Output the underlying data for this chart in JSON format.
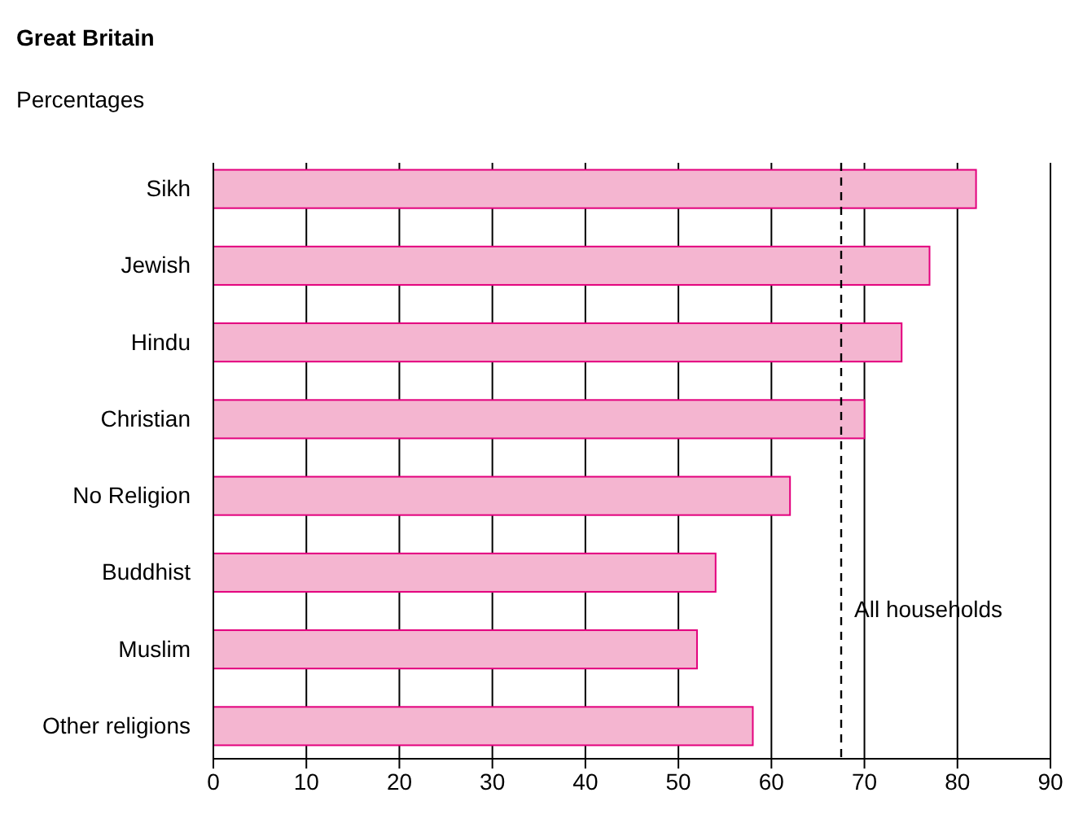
{
  "chart_data": {
    "type": "bar",
    "orientation": "horizontal",
    "title": "Great Britain",
    "subtitle": "Percentages",
    "categories": [
      "Sikh",
      "Jewish",
      "Hindu",
      "Christian",
      "No Religion",
      "Buddhist",
      "Muslim",
      "Other religions"
    ],
    "values": [
      82,
      77,
      74,
      70,
      62,
      54,
      52,
      58
    ],
    "color": "#f4b5d0",
    "xlim": [
      0,
      90
    ],
    "xticks": [
      0,
      10,
      20,
      30,
      40,
      50,
      60,
      70,
      80,
      90
    ],
    "grid": "x",
    "ref_lines": [
      {
        "axis": "x",
        "value": 67.5,
        "label": "All households",
        "line_style": "dashed"
      }
    ]
  }
}
